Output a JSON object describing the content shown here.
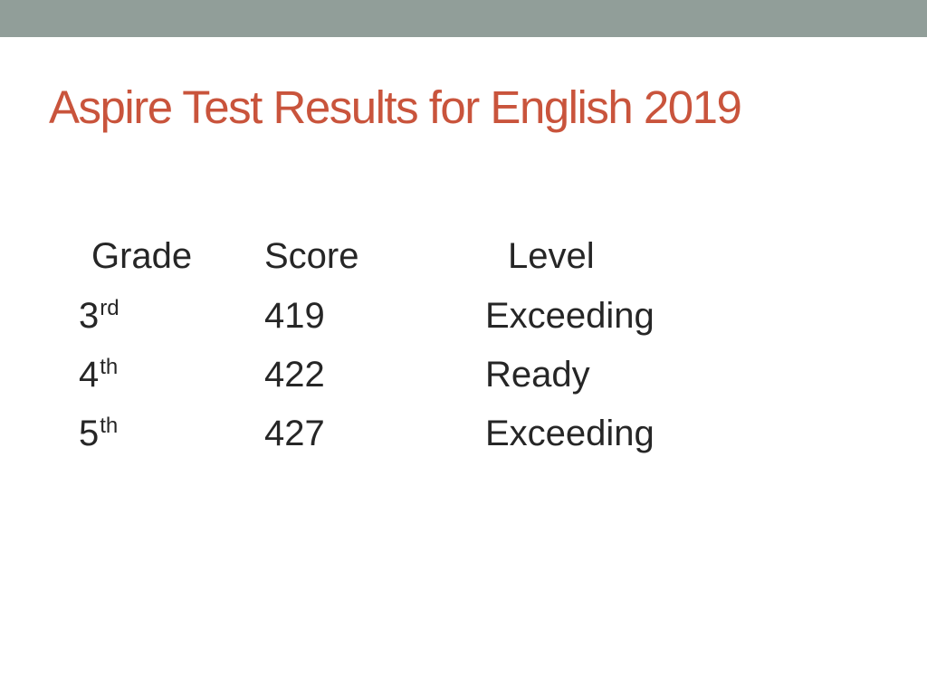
{
  "theme": {
    "top_bar_color": "#919e99",
    "title_color": "#c9543c",
    "text_color": "#262626"
  },
  "slide": {
    "title": "Aspire Test Results for English 2019",
    "table": {
      "headers": {
        "grade": "Grade",
        "score": "Score",
        "level": "Level"
      },
      "rows": [
        {
          "grade": "3",
          "grade_suffix": "rd",
          "score": "419",
          "level": "Exceeding"
        },
        {
          "grade": "4",
          "grade_suffix": "th",
          "score": "422",
          "level": "Ready"
        },
        {
          "grade": "5",
          "grade_suffix": "th",
          "score": "427",
          "level": "Exceeding"
        }
      ]
    }
  }
}
